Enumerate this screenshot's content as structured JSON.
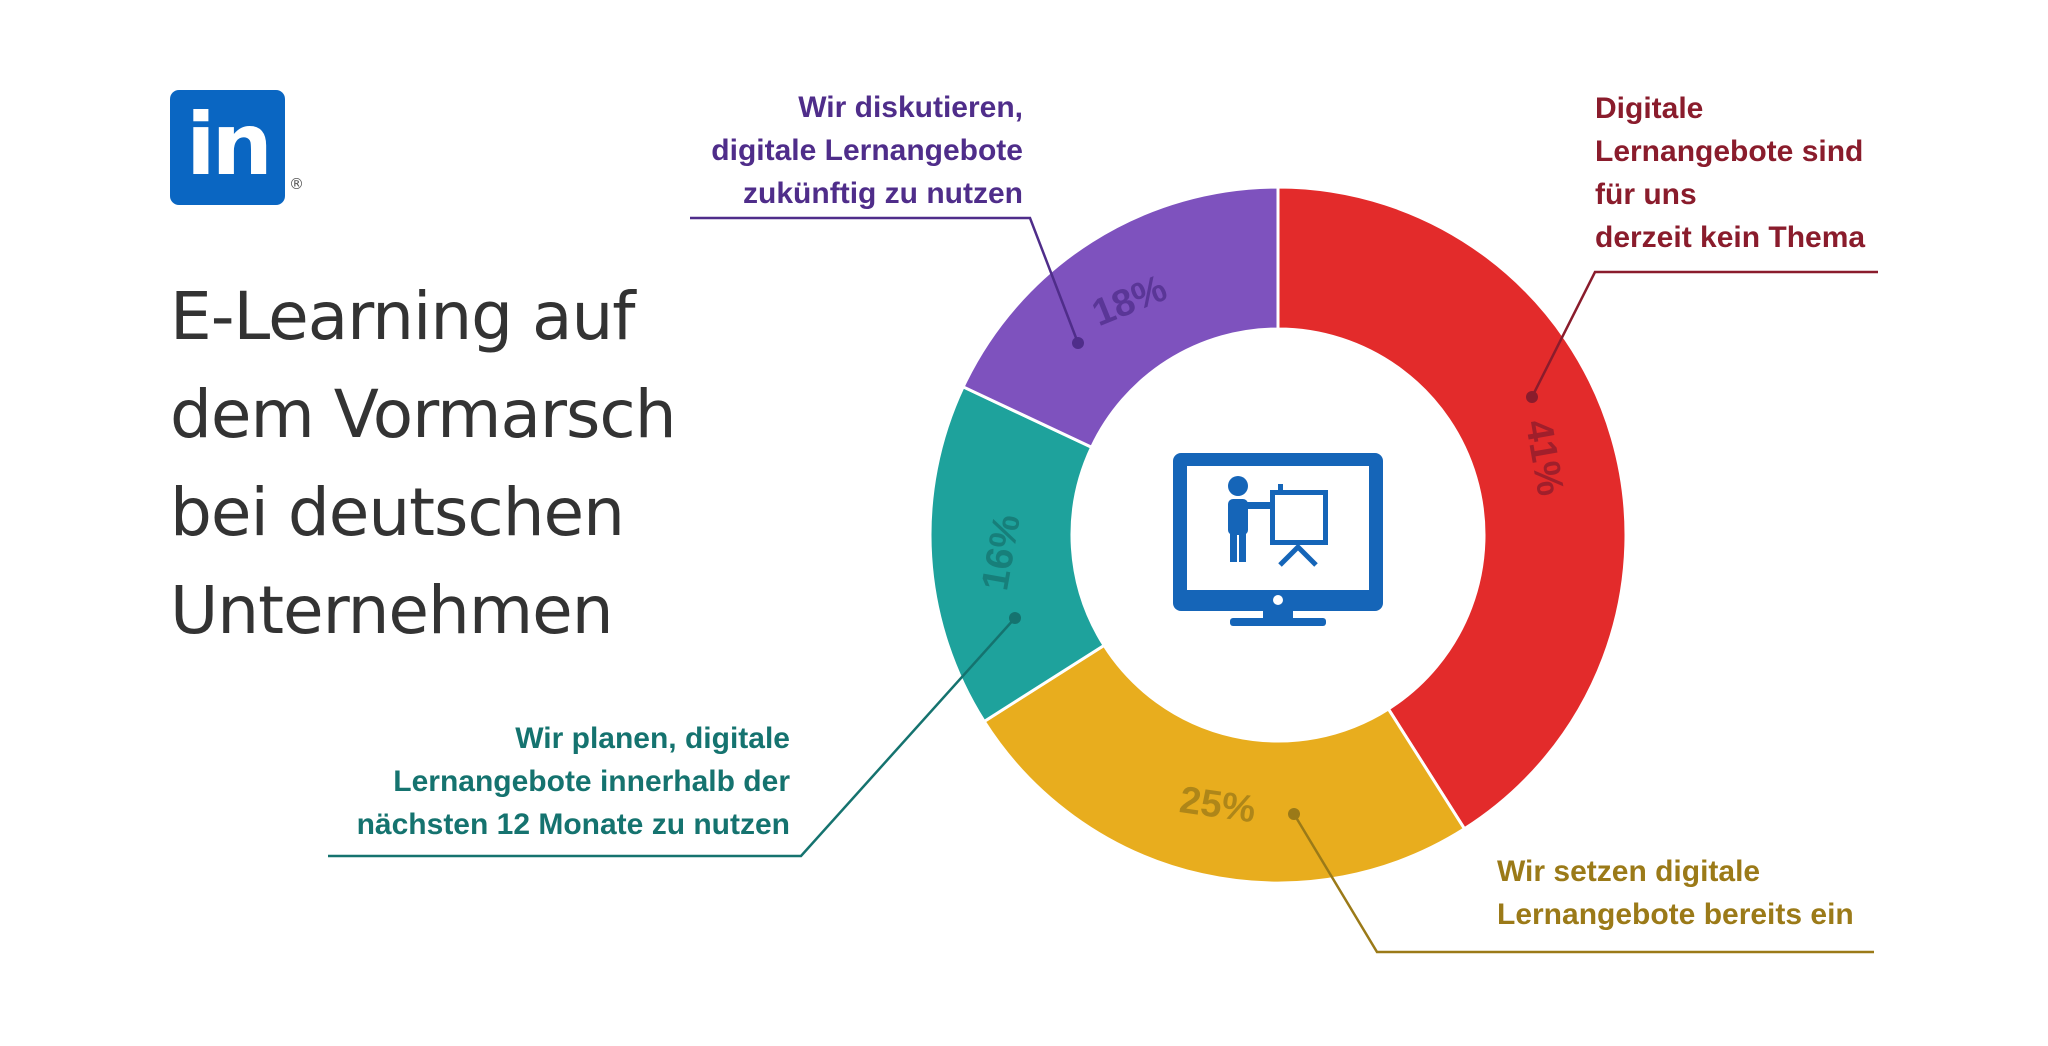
{
  "logo": {
    "text": "in",
    "registered": "®"
  },
  "title_lines": [
    "E-Learning auf",
    "dem Vormarsch",
    "bei deutschen",
    "Unternehmen"
  ],
  "chart_data": {
    "type": "pie",
    "variant": "donut",
    "slices": [
      {
        "value": 41,
        "label": "41%",
        "color": "#e32b2b",
        "text_color": "#8a1c2c",
        "description": [
          "Digitale",
          "Lernangebote sind",
          "für uns",
          "derzeit kein Thema"
        ]
      },
      {
        "value": 25,
        "label": "25%",
        "color": "#e8ad1e",
        "text_color": "#9b7a18",
        "description": [
          "Wir setzen digitale",
          "Lernangebote bereits ein"
        ]
      },
      {
        "value": 16,
        "label": "16%",
        "color": "#1ea29c",
        "text_color": "#15736f",
        "description": [
          "Wir planen, digitale",
          "Lernangebote innerhalb der",
          "nächsten 12 Monate zu nutzen"
        ]
      },
      {
        "value": 18,
        "label": "18%",
        "color": "#7e52be",
        "text_color": "#4f2d8a",
        "description": [
          "Wir diskutieren,",
          "digitale Lernangebote",
          "zukünftig zu nutzen"
        ]
      }
    ],
    "center_icon": "presentation-monitor-icon"
  }
}
